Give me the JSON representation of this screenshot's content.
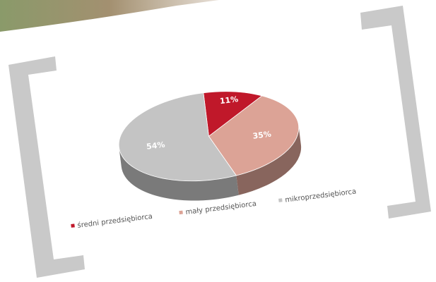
{
  "chart_data": {
    "type": "pie",
    "categories": [
      "średni przedsiębiorca",
      "mały przedsiębiorca",
      "mikroprzedsiębiorca"
    ],
    "values": [
      11,
      35,
      54
    ],
    "value_labels": [
      "11%",
      "35%",
      "54%"
    ],
    "colors": [
      "#c0182a",
      "#dca396",
      "#c4c4c4"
    ],
    "legend": "bottom"
  }
}
